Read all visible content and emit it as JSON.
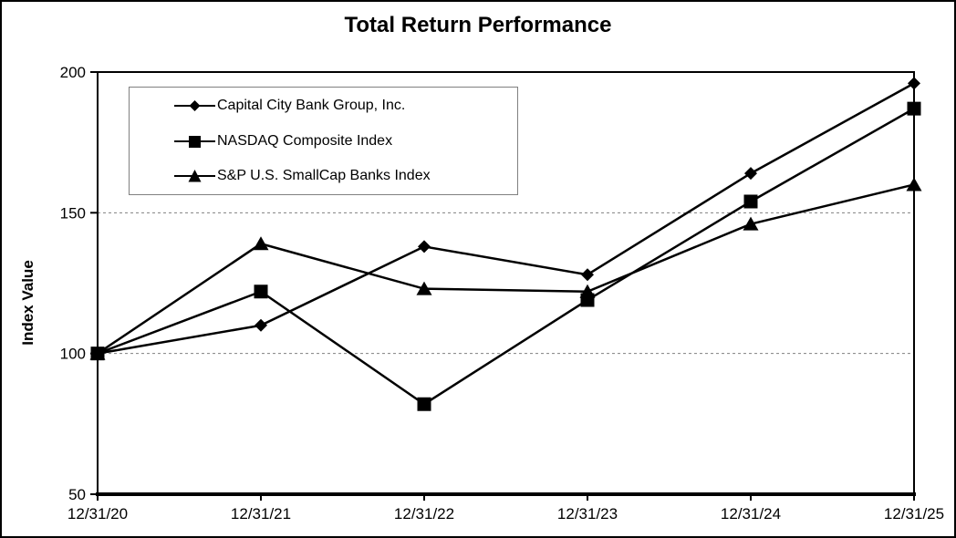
{
  "title": "Total Return Performance",
  "chart_data": {
    "type": "line",
    "title": "Total Return Performance",
    "ylabel": "Index Value",
    "xlabel": "",
    "categories": [
      "12/31/20",
      "12/31/21",
      "12/31/22",
      "12/31/23",
      "12/31/24",
      "12/31/25"
    ],
    "series": [
      {
        "name": "Capital City Bank Group, Inc.",
        "marker": "diamond",
        "values": [
          100,
          110,
          138,
          128,
          164,
          196
        ]
      },
      {
        "name": "NASDAQ Composite Index",
        "marker": "square",
        "values": [
          100,
          122,
          82,
          119,
          154,
          187
        ]
      },
      {
        "name": "S&P U.S. SmallCap Banks Index",
        "marker": "triangle",
        "values": [
          100,
          139,
          123,
          122,
          146,
          160
        ]
      }
    ],
    "ylim": [
      50,
      200
    ],
    "y_ticks": [
      200,
      150,
      100,
      50
    ],
    "gridlines": [
      150,
      100
    ],
    "grid": "horizontal-dashed",
    "legend_position": "top-left-inside",
    "colors": {
      "line": "#000000",
      "marker": "#000000",
      "gridline": "#808080",
      "legend_border": "#808080",
      "text": "#000000",
      "background": "#ffffff"
    }
  }
}
